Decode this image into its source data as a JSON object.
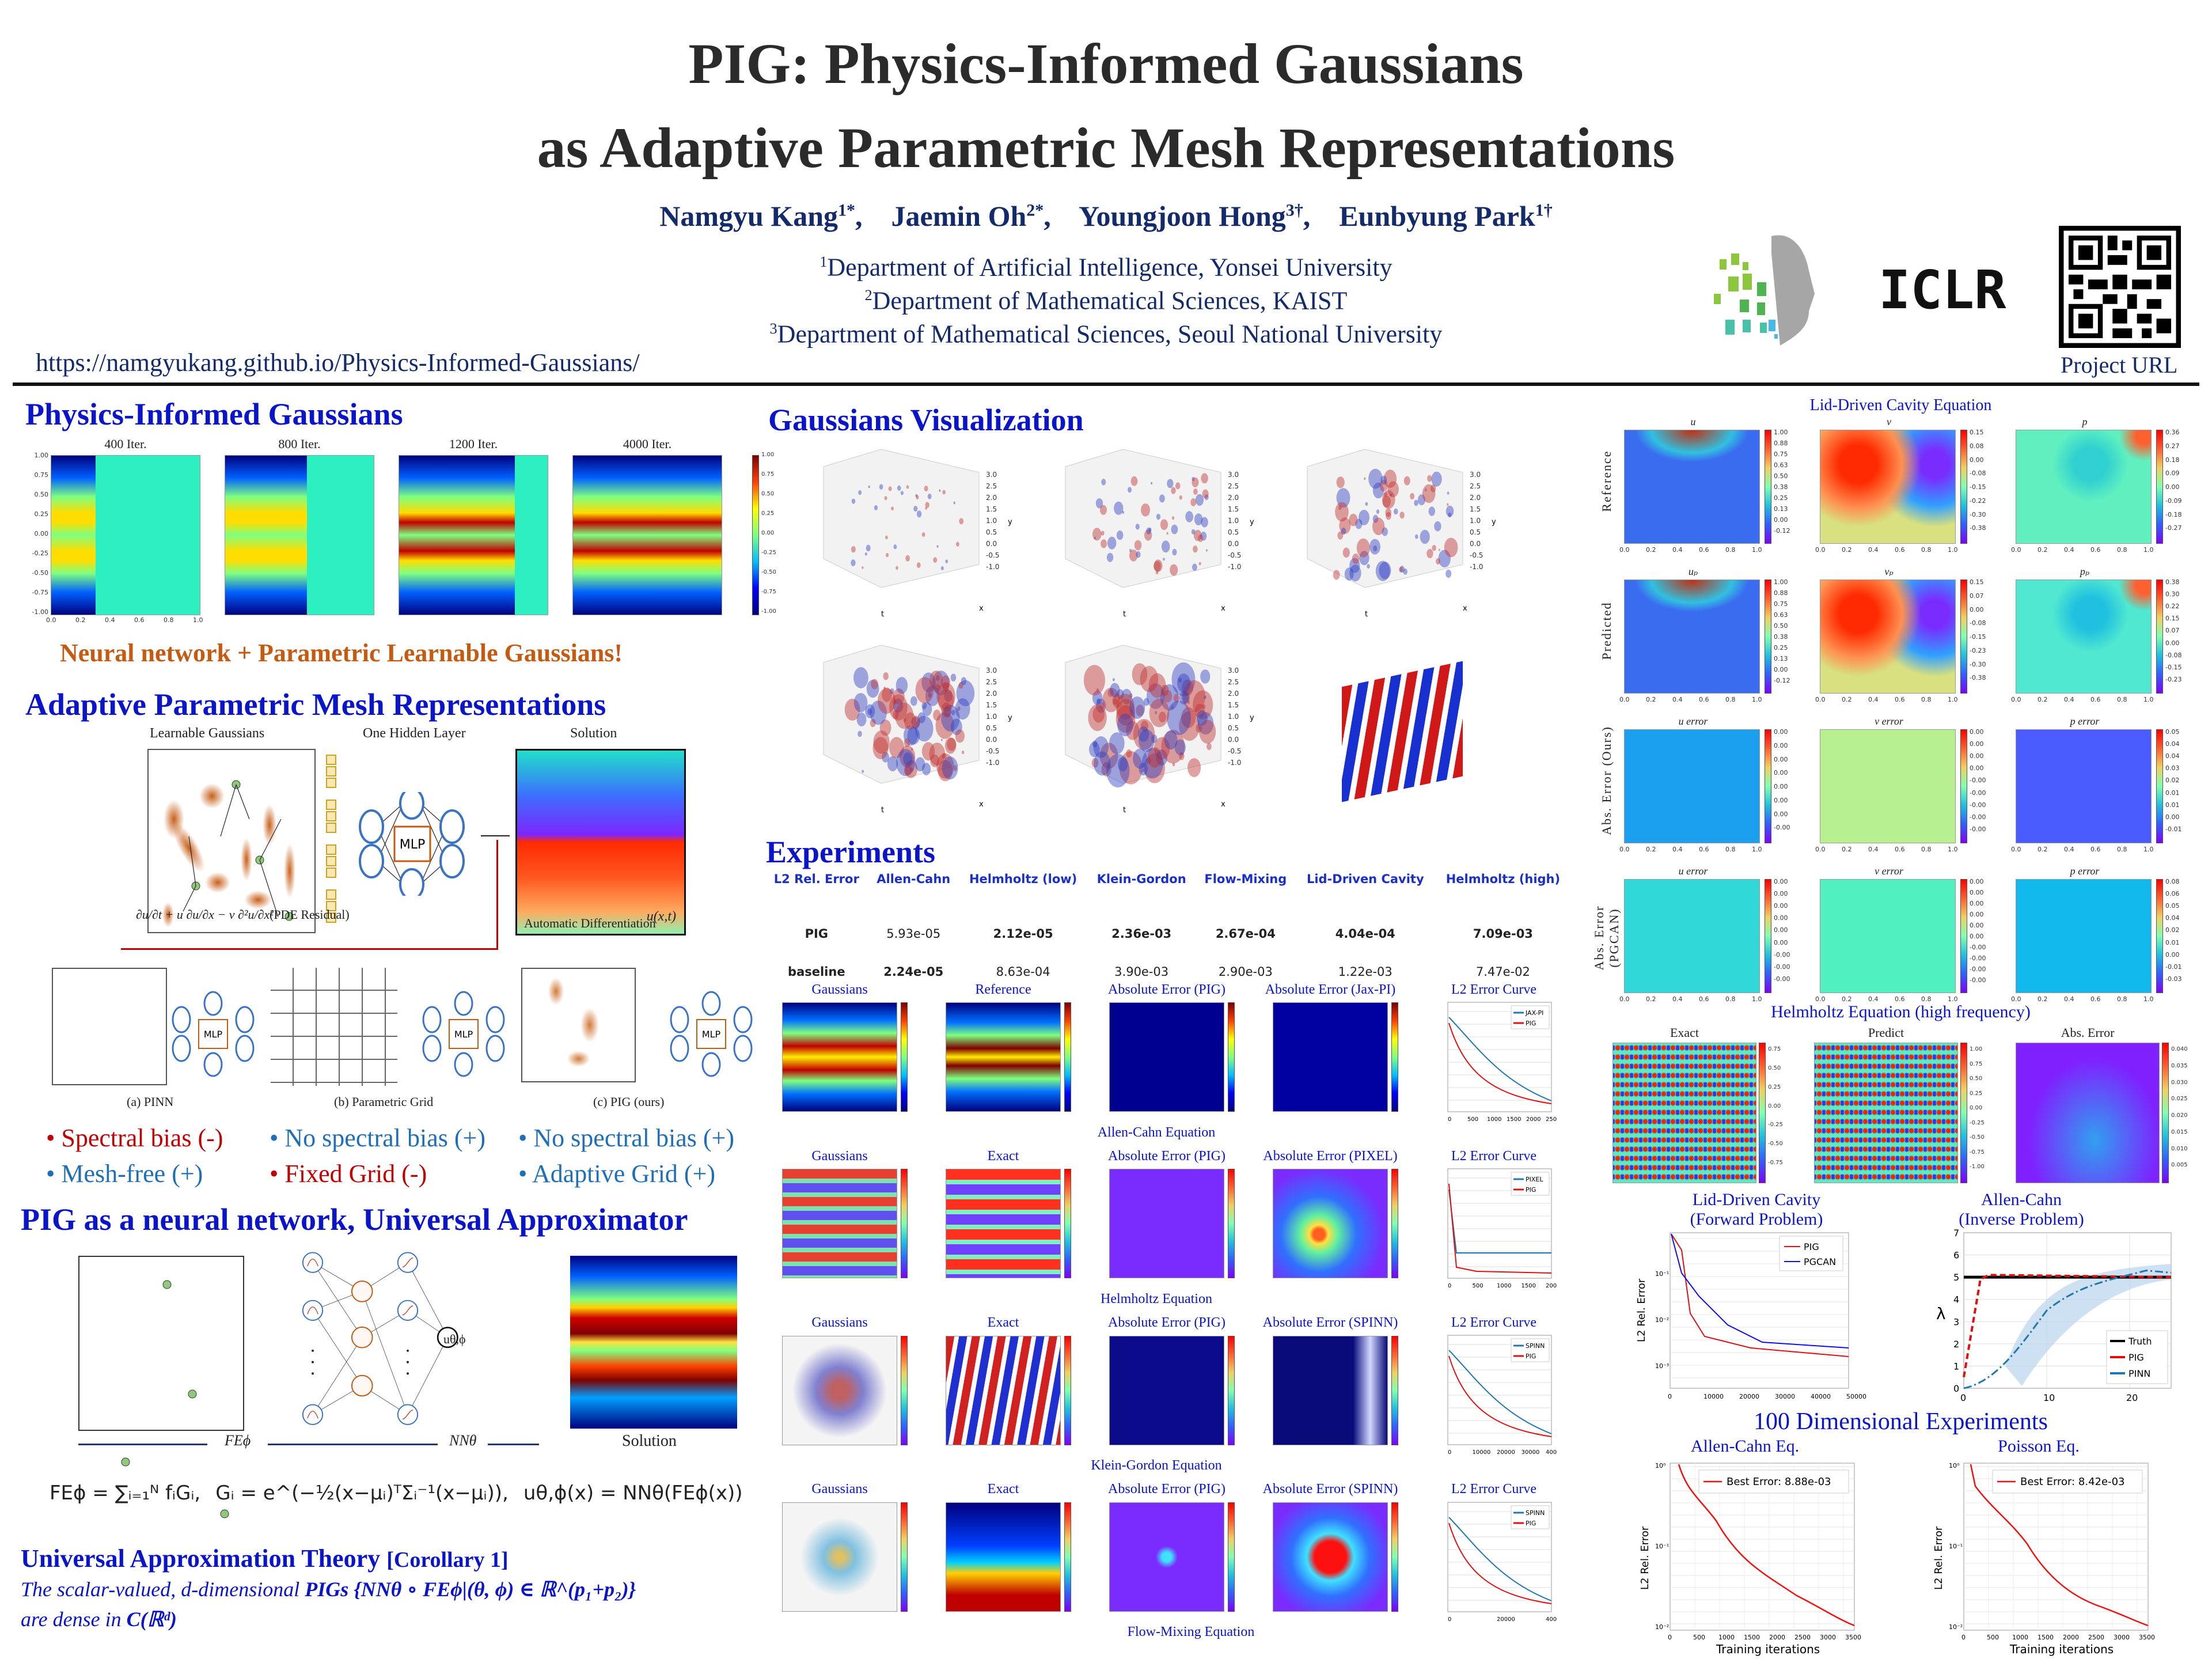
{
  "header": {
    "title_line1": "PIG: Physics-Informed Gaussians",
    "title_line2": "as Adaptive Parametric Mesh Representations",
    "authors": [
      {
        "name": "Namgyu Kang",
        "mark": "1*"
      },
      {
        "name": "Jaemin Oh",
        "mark": "2*"
      },
      {
        "name": "Youngjoon Hong",
        "mark": "3†"
      },
      {
        "name": "Eunbyung Park",
        "mark": "1†"
      }
    ],
    "affiliations": [
      {
        "num": "1",
        "text": "Department of Artificial Intelligence, Yonsei University"
      },
      {
        "num": "2",
        "text": "Department of Mathematical Sciences, KAIST"
      },
      {
        "num": "3",
        "text": "Department of Mathematical Sciences, Seoul National University"
      }
    ],
    "url": "https://namgyukang.github.io/Physics-Informed-Gaussians/",
    "conference_logo": "ICLR",
    "qr_label": "Project URL"
  },
  "left": {
    "pig_section": {
      "heading": "Physics-Informed Gaussians",
      "iterations": [
        "400 Iter.",
        "800 Iter.",
        "1200 Iter.",
        "4000 Iter."
      ],
      "y_ticks": [
        "1.00",
        "0.75",
        "0.50",
        "0.25",
        "0.00",
        "-0.25",
        "-0.50",
        "-0.75",
        "-1.00"
      ],
      "x_ticks": [
        "0.0",
        "0.2",
        "0.4",
        "0.6",
        "0.8",
        "1.0"
      ],
      "cbar_ticks": [
        "1.00",
        "0.75",
        "0.50",
        "0.25",
        "0.00",
        "-0.25",
        "-0.50",
        "-0.75",
        "-1.00"
      ],
      "tagline": "Neural network + Parametric Learnable Gaussians!"
    },
    "apmr_section": {
      "heading": "Adaptive Parametric Mesh Representations",
      "labels": {
        "gaussians": "Learnable Gaussians",
        "hidden": "One Hidden Layer",
        "solution": "Solution"
      },
      "mlp": "MLP",
      "solution_label": "u(x,t)",
      "pde_residual": "∂u/∂t + u ∂u/∂x − ν ∂²u/∂x²",
      "pde_residual_tag": "(PDE Residual)",
      "autodiff": "Automatic Differentiation",
      "compare": [
        {
          "caption": "(a) PINN",
          "pros": [
            {
              "text": "Spectral bias (-)",
              "tone": "red"
            },
            {
              "text": "Mesh-free (+)",
              "tone": "blue"
            }
          ]
        },
        {
          "caption": "(b) Parametric Grid",
          "pros": [
            {
              "text": "No spectral bias (+)",
              "tone": "blue"
            },
            {
              "text": "Fixed Grid (-)",
              "tone": "red"
            }
          ]
        },
        {
          "caption": "(c) PIG (ours)",
          "pros": [
            {
              "text": "No spectral bias (+)",
              "tone": "blue"
            },
            {
              "text": "Adaptive Grid (+)",
              "tone": "blue"
            }
          ]
        }
      ]
    },
    "ua_section": {
      "heading": "PIG as a neural network, Universal Approximator",
      "fe_label": "FEϕ",
      "nn_label": "NNθ",
      "output_node": "uθ,ϕ",
      "solution": "Solution",
      "formula_fe": "FEϕ = ∑ᵢ₌₁ᴺ fᵢGᵢ,",
      "formula_g": "Gᵢ = e^(−½(x−μᵢ)ᵀΣᵢ⁻¹(x−μᵢ)),",
      "formula_u": "uθ,ϕ(x) = NNθ(FEϕ(x))",
      "theory_heading": "Universal Approximation Theory",
      "theory_tag": "[Corollary 1]",
      "theory_line1_pre": "The scalar-valued, d-dimensional ",
      "theory_line1_bold": "PIGs {NNθ ∘ FEϕ|(θ, ϕ) ∈ ℝ^(p₁+p₂)}",
      "theory_line2_pre": "are dense in ",
      "theory_line2_bold": "C(ℝᵈ)"
    }
  },
  "middle": {
    "viz_heading": "Gaussians Visualization",
    "viz_axes": {
      "t": "t",
      "x": "x",
      "y": "y"
    },
    "viz_ticks": [
      "3.0",
      "2.5",
      "2.0",
      "1.5",
      "1.0",
      "0.5",
      "0.0",
      "-0.5",
      "-1.0"
    ],
    "exp_heading": "Experiments",
    "table": {
      "columns": [
        "L2 Rel. Error",
        "Allen-Cahn",
        "Helmholtz (low)",
        "Klein-Gordon",
        "Flow-Mixing",
        "Lid-Driven Cavity",
        "Helmholtz (high)"
      ],
      "rows": [
        {
          "label": "PIG",
          "values": [
            "5.93e-05",
            "2.12e-05",
            "2.36e-03",
            "2.67e-04",
            "4.04e-04",
            "7.09e-03"
          ],
          "bold": [
            false,
            true,
            true,
            true,
            true,
            true
          ]
        },
        {
          "label": "baseline",
          "values": [
            "2.24e-05",
            "8.63e-04",
            "3.90e-03",
            "2.90e-03",
            "1.22e-03",
            "7.47e-02"
          ],
          "bold": [
            true,
            false,
            false,
            false,
            false,
            false
          ]
        }
      ]
    },
    "experiments": [
      {
        "name": "Allen-Cahn Equation",
        "panels": [
          "Gaussians",
          "Reference",
          "Absolute Error (PIG)",
          "Absolute Error (Jax-PI)",
          "L2 Error Curve"
        ],
        "legend": [
          "JAX-PI",
          "PIG"
        ],
        "curve_x_ticks": [
          "0",
          "500",
          "1000",
          "1500",
          "2000",
          "2500"
        ]
      },
      {
        "name": "Helmholtz Equation",
        "panels": [
          "Gaussians",
          "Exact",
          "Absolute Error (PIG)",
          "Absolute Error (PIXEL)",
          "L2 Error Curve"
        ],
        "legend": [
          "PIXEL",
          "PIG"
        ],
        "curve_x_ticks": [
          "0",
          "500",
          "1000",
          "1500",
          "2000"
        ]
      },
      {
        "name": "Klein-Gordon Equation",
        "panels": [
          "Gaussians",
          "Exact",
          "Absolute Error (PIG)",
          "Absolute Error (SPINN)",
          "L2 Error Curve"
        ],
        "legend": [
          "SPINN",
          "PIG"
        ],
        "curve_x_ticks": [
          "0",
          "10000",
          "20000",
          "30000",
          "40000"
        ]
      },
      {
        "name": "Flow-Mixing Equation",
        "panels": [
          "Gaussians",
          "Exact",
          "Absolute Error (PIG)",
          "Absolute Error (SPINN)",
          "L2 Error Curve"
        ],
        "legend": [
          "SPINN",
          "PIG"
        ],
        "curve_x_ticks": [
          "0",
          "20000",
          "40000"
        ]
      }
    ]
  },
  "right": {
    "ldc_title": "Lid-Driven Cavity Equation",
    "row_labels": [
      "Reference",
      "Predicted",
      "Abs. Error (Ours)",
      "Abs. Error (PGCAN)"
    ],
    "col_titles": [
      [
        "u",
        "v",
        "p"
      ],
      [
        "uₚ",
        "vₚ",
        "pₚ"
      ],
      [
        "u error",
        "v error",
        "p error"
      ],
      [
        "u error",
        "v error",
        "p error"
      ]
    ],
    "cbar_ticks": [
      [
        [
          "1.00",
          "0.88",
          "0.75",
          "0.63",
          "0.50",
          "0.38",
          "0.25",
          "0.13",
          "0.00",
          "-0.12"
        ],
        [
          "0.15",
          "0.08",
          "0.00",
          "-0.08",
          "-0.15",
          "-0.22",
          "-0.30",
          "-0.38"
        ],
        [
          "0.36",
          "0.27",
          "0.18",
          "0.09",
          "0.00",
          "-0.09",
          "-0.18",
          "-0.27"
        ]
      ],
      [
        [
          "1.00",
          "0.88",
          "0.75",
          "0.63",
          "0.50",
          "0.38",
          "0.25",
          "0.13",
          "0.00",
          "-0.12"
        ],
        [
          "0.15",
          "0.07",
          "0.00",
          "-0.08",
          "-0.15",
          "-0.23",
          "-0.30",
          "-0.38"
        ],
        [
          "0.38",
          "0.30",
          "0.22",
          "0.15",
          "0.07",
          "0.00",
          "-0.08",
          "-0.15",
          "-0.23"
        ]
      ],
      [
        [
          "0.00",
          "0.00",
          "0.00",
          "0.00",
          "0.00",
          "0.00",
          "0.00",
          "-0.00"
        ],
        [
          "0.00",
          "0.00",
          "0.00",
          "0.00",
          "-0.00",
          "-0.00",
          "-0.00",
          "-0.00",
          "-0.00"
        ],
        [
          "0.05",
          "0.04",
          "0.04",
          "0.03",
          "0.02",
          "0.01",
          "0.01",
          "0.00",
          "-0.01"
        ]
      ],
      [
        [
          "0.00",
          "0.00",
          "0.00",
          "0.00",
          "0.00",
          "0.00",
          "-0.00",
          "-0.00",
          "-0.00"
        ],
        [
          "0.00",
          "0.00",
          "0.00",
          "0.00",
          "0.00",
          "0.00",
          "-0.00",
          "-0.00",
          "-0.00",
          "-0.00"
        ],
        [
          "0.08",
          "0.06",
          "0.05",
          "0.04",
          "0.02",
          "0.01",
          "0.00",
          "-0.01",
          "-0.03"
        ]
      ]
    ],
    "axis_ticks": [
      "0.0",
      "0.2",
      "0.4",
      "0.6",
      "0.8",
      "1.0"
    ],
    "helmholtz_title": "Helmholtz Equation (high frequency)",
    "helmholtz_panels": [
      "Exact",
      "Predict",
      "Abs. Error"
    ],
    "helmholtz_cbar": [
      [
        "0.75",
        "0.50",
        "0.25",
        "0.00",
        "-0.25",
        "-0.50",
        "-0.75"
      ],
      [
        "1.00",
        "0.75",
        "0.50",
        "0.25",
        "0.00",
        "-0.25",
        "-0.50",
        "-0.75",
        "-1.00"
      ],
      [
        "0.040",
        "0.035",
        "0.030",
        "0.025",
        "0.020",
        "0.015",
        "0.010",
        "0.005"
      ]
    ],
    "forward": {
      "title1": "Lid-Driven Cavity",
      "title2": "(Forward Problem)",
      "ylabel": "L2 Rel. Error",
      "legend": [
        "PIG",
        "PGCAN"
      ],
      "x_ticks": [
        "0",
        "10000",
        "20000",
        "30000",
        "40000",
        "50000"
      ],
      "y_ticks": [
        "10⁻¹",
        "10⁻²",
        "10⁻³"
      ]
    },
    "inverse": {
      "title1": "Allen-Cahn",
      "title2": "(Inverse Problem)",
      "ylabel": "λ",
      "legend": [
        "Truth",
        "PIG",
        "PINN"
      ],
      "x_ticks": [
        "0",
        "10",
        "20"
      ],
      "y_ticks": [
        "7",
        "6",
        "5",
        "4",
        "3",
        "2",
        "1",
        "0"
      ]
    },
    "hd": {
      "title": "100 Dimensional Experiments",
      "plots": [
        {
          "name": "Allen-Cahn Eq.",
          "best": "Best Error: 8.88e-03"
        },
        {
          "name": "Poisson Eq.",
          "best": "Best Error: 8.42e-03"
        }
      ],
      "ylabel": "L2 Rel. Error",
      "xlabel": "Training iterations",
      "x_ticks": [
        "0",
        "500",
        "1000",
        "1500",
        "2000",
        "2500",
        "3000",
        "3500"
      ],
      "y_ticks": [
        "10⁰",
        "10⁻¹",
        "10⁻²"
      ]
    }
  }
}
